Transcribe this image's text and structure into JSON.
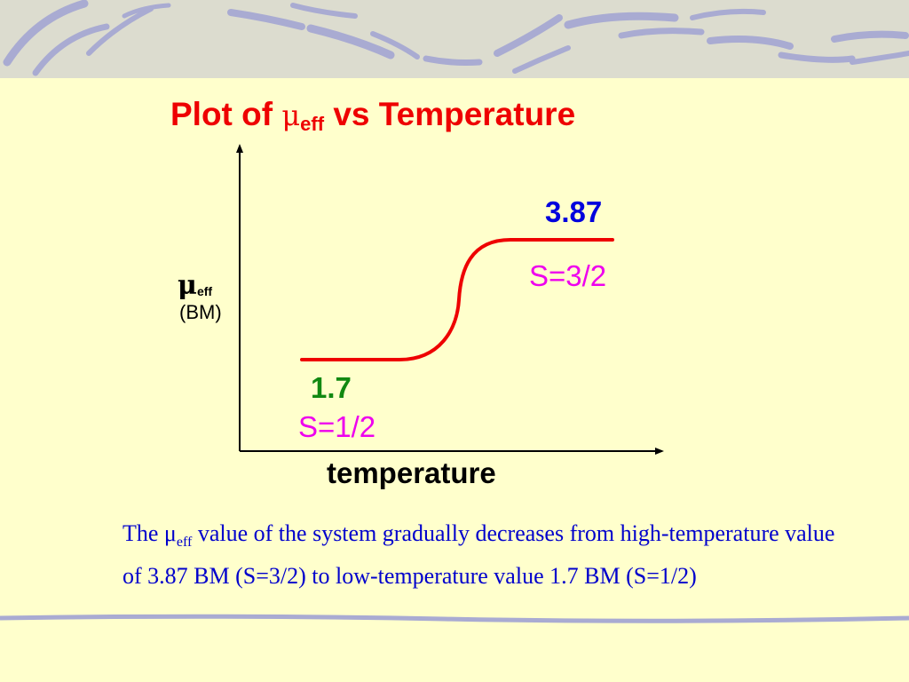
{
  "colors": {
    "background": "#ffffcc",
    "title": "#ee0000",
    "curve": "#ee0000",
    "high_value": "#0000dd",
    "low_value": "#118811",
    "spin": "#ee00ee",
    "caption": "#0000cc",
    "decoration": "#a9abd2"
  },
  "title": {
    "prefix": "Plot of ",
    "symbol": "μ",
    "subscript": "eff",
    "suffix": " vs Temperature"
  },
  "chart_data": {
    "type": "line",
    "title": "Plot of μeff vs Temperature",
    "xlabel": "temperature",
    "ylabel": "μeff (BM)",
    "ylabel_symbol": "μ",
    "ylabel_subscript": "eff",
    "ylabel_unit": "(BM)",
    "axis_ticks": "none",
    "grid": false,
    "curve_shape": "sigmoidal step from low plateau (low temperature) to high plateau (high temperature)",
    "low": {
      "value": 1.7,
      "label": "1.7",
      "spin": "S=1/2"
    },
    "high": {
      "value": 3.87,
      "label": "3.87",
      "spin": "S=3/2"
    }
  },
  "caption": {
    "part1": "The ",
    "symbol": "μ",
    "subscript": "eff",
    "part2": " value of the system gradually decreases from high-temperature value of 3.87 BM (S=3/2) to low-temperature value 1.7 BM (S=1/2)"
  }
}
